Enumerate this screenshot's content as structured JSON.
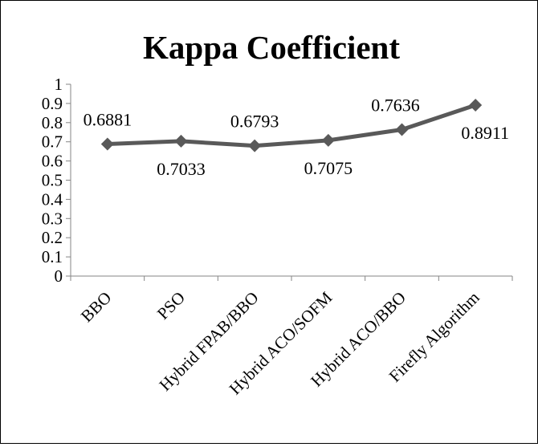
{
  "chart_data": {
    "type": "line",
    "title": "Kappa Coefficient",
    "categories": [
      "BBO",
      "PSO",
      "Hybrid FPAB/BBO",
      "Hybrid ACO/SOFM",
      "Hybrid ACO/BBO",
      "Firefly Algorithm"
    ],
    "series": [
      {
        "values": [
          0.6881,
          0.7033,
          0.6793,
          0.7075,
          0.7636,
          0.8911
        ]
      }
    ],
    "data_labels": [
      "0.6881",
      "0.7033",
      "0.6793",
      "0.7075",
      "0.7636",
      "0.8911"
    ],
    "ylim": [
      0,
      1
    ],
    "yticks": [
      "0",
      "0.1",
      "0.2",
      "0.3",
      "0.4",
      "0.5",
      "0.6",
      "0.7",
      "0.8",
      "0.9",
      "1"
    ],
    "xlabel": "",
    "ylabel": "",
    "grid": false,
    "legend": "none",
    "colors": {
      "line": "#595959",
      "text": "#000000",
      "axis": "#868686"
    }
  }
}
